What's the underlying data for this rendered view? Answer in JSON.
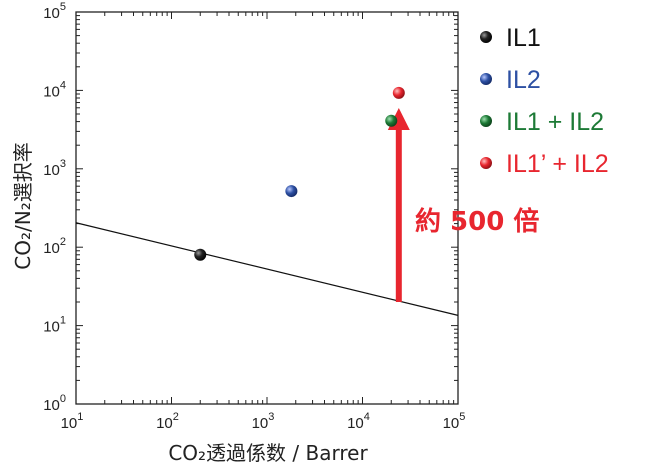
{
  "chart_data": {
    "type": "scatter",
    "title": "",
    "xlabel": "CO₂透過係数 / Barrer",
    "ylabel": "CO₂/N₂選択率",
    "x_scale": "log",
    "y_scale": "log",
    "xlim": [
      10,
      100000
    ],
    "ylim": [
      1,
      100000
    ],
    "grid": false,
    "legend_position": "right",
    "x_ticks": [
      {
        "base": "10",
        "exp": "1"
      },
      {
        "base": "10",
        "exp": "2"
      },
      {
        "base": "10",
        "exp": "3"
      },
      {
        "base": "10",
        "exp": "4"
      },
      {
        "base": "10",
        "exp": "5"
      }
    ],
    "y_ticks": [
      {
        "base": "10",
        "exp": "0"
      },
      {
        "base": "10",
        "exp": "1"
      },
      {
        "base": "10",
        "exp": "2"
      },
      {
        "base": "10",
        "exp": "3"
      },
      {
        "base": "10",
        "exp": "4"
      },
      {
        "base": "10",
        "exp": "5"
      }
    ],
    "series": [
      {
        "name": "IL1",
        "color": "#111111",
        "points": [
          {
            "x": 200,
            "y": 80
          }
        ]
      },
      {
        "name": "IL2",
        "color": "#2d50a3",
        "points": [
          {
            "x": 1800,
            "y": 520
          }
        ]
      },
      {
        "name": "IL1 + IL2",
        "color": "#1d7a36",
        "points": [
          {
            "x": 20000,
            "y": 4100
          }
        ]
      },
      {
        "name": "IL1’ + IL2",
        "color": "#e8262f",
        "points": [
          {
            "x": 24000,
            "y": 9300
          }
        ]
      }
    ],
    "trend_line": {
      "from": {
        "x": 10,
        "y": 205
      },
      "to": {
        "x": 100000,
        "y": 13.5
      },
      "color": "#111111"
    },
    "arrow": {
      "from": {
        "x": 24000,
        "y": 20
      },
      "to": {
        "x": 24000,
        "y": 8000
      },
      "color": "#e8262f"
    },
    "annotation": {
      "text": "約 500 倍",
      "color": "#e8262f"
    }
  }
}
